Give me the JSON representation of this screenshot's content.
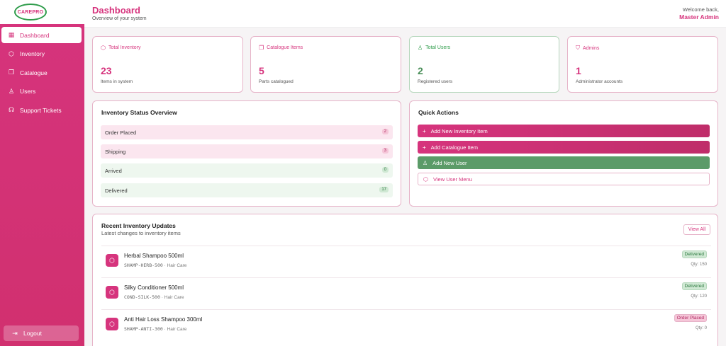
{
  "brand": {
    "logo_text": "CAREPRO"
  },
  "sidebar": {
    "items": [
      {
        "label": "Dashboard",
        "icon": "grid-icon",
        "active": true
      },
      {
        "label": "Inventory",
        "icon": "box-icon"
      },
      {
        "label": "Catalogue",
        "icon": "book-icon"
      },
      {
        "label": "Users",
        "icon": "user-icon"
      },
      {
        "label": "Support Tickets",
        "icon": "headset-icon"
      }
    ],
    "logout_label": "Logout"
  },
  "header": {
    "title": "Dashboard",
    "subtitle": "Overview of your system",
    "welcome": "Welcome back,",
    "user": "Master Admin"
  },
  "stats": [
    {
      "label": "Total Inventory",
      "value": "23",
      "note": "Items in system"
    },
    {
      "label": "Catalogue Items",
      "value": "5",
      "note": "Parts catalogued"
    },
    {
      "label": "Total Users",
      "value": "2",
      "note": "Registered users"
    },
    {
      "label": "Admins",
      "value": "1",
      "note": "Administrator accounts"
    }
  ],
  "inventory_overview": {
    "title": "Inventory Status Overview",
    "rows": [
      {
        "label": "Order Placed",
        "count": "2"
      },
      {
        "label": "Shipping",
        "count": "3"
      },
      {
        "label": "Arrived",
        "count": "0"
      },
      {
        "label": "Delivered",
        "count": "17"
      }
    ]
  },
  "quick_actions": {
    "title": "Quick Actions",
    "actions": [
      {
        "label": "Add New Inventory Item"
      },
      {
        "label": "Add Catalogue Item"
      },
      {
        "label": "Add New User"
      },
      {
        "label": "View User Menu"
      }
    ]
  },
  "recent": {
    "title": "Recent Inventory Updates",
    "subtitle": "Latest changes to inventory items",
    "view_all": "View All",
    "items": [
      {
        "name": "Herbal Shampoo 500ml",
        "sku": "SHAMP-HERB-500",
        "separator": "·",
        "category": "Hair Care",
        "status": "Delivered",
        "qty": "Qty: 150"
      },
      {
        "name": "Silky Conditioner 500ml",
        "sku": "COND-SILK-500",
        "separator": "·",
        "category": "Hair Care",
        "status": "Delivered",
        "qty": "Qty: 120"
      },
      {
        "name": "Anti Hair Loss Shampoo 300ml",
        "sku": "SHAMP-ANTI-300",
        "separator": "·",
        "category": "Hair Care",
        "status": "Order Placed",
        "qty": "Qty: 0"
      }
    ]
  }
}
